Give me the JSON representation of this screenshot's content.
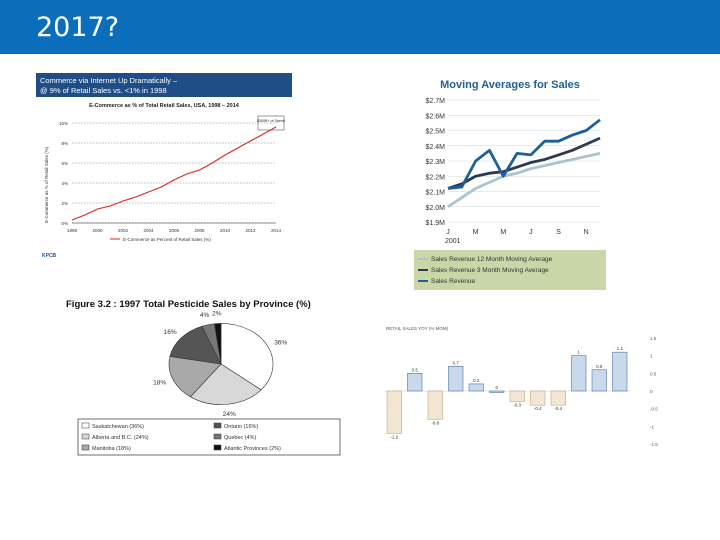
{
  "slide": {
    "title": "2017?"
  },
  "colors": {
    "header": "#0a6ebd",
    "ecom_banner": "#1f4e86",
    "ecom_line": "#d62728",
    "ma_line1": "#a9c4cf",
    "ma_line2": "#2b3a4f",
    "ma_line3": "#1f5f99",
    "ma_legend_bg": "#c8d6a8"
  },
  "ecommerce": {
    "banner_line1": "Commerce via Internet Up Dramatically –",
    "banner_line2": "@ 9% of Retail Sales vs. <1% in 1998",
    "chart_title": "E-Commerce as % of Total Retail Sales, USA, 1998 – 2014",
    "callout": "$300B+ of Spend",
    "ylabel": "E-Commerce as % of Retail Sales (%)",
    "legend": "E-Commerce as Percent of Retail Sales (%)",
    "footer_logo": "KPCB"
  },
  "moving_avg": {
    "title": "Moving Averages for Sales",
    "year_label": "2001",
    "legend": [
      "Sales Revenue 12 Month Moving Average",
      "Sales Revenue 3 Month Moving Average",
      "Sales Revenue"
    ]
  },
  "pesticide": {
    "title": "Figure 3.2 : 1997 Total Pesticide Sales by Province (%)",
    "legend": [
      "Saskatchewan (36%)",
      "Ontario (16%)",
      "Alberta and B.C. (24%)",
      "Quebec (4%)",
      "Manitoba (18%)",
      "Atlantic Provinces (2%)"
    ]
  },
  "bar_panel": {
    "header": "RETAIL SALES YOY (% MOM)"
  },
  "chart_data": [
    {
      "type": "line",
      "title": "E-Commerce as % of Total Retail Sales, USA, 1998 – 2014",
      "xlabel": "",
      "ylabel": "E-Commerce as % of Retail Sales (%)",
      "x": [
        1998,
        1999,
        2000,
        2001,
        2002,
        2003,
        2004,
        2005,
        2006,
        2007,
        2008,
        2009,
        2010,
        2011,
        2012,
        2013,
        2014
      ],
      "series": [
        {
          "name": "E-Commerce as Percent of Retail Sales (%)",
          "values": [
            0.3,
            0.8,
            1.4,
            1.7,
            2.2,
            2.6,
            3.1,
            3.6,
            4.3,
            4.9,
            5.3,
            6.0,
            6.8,
            7.5,
            8.2,
            8.9,
            9.6
          ]
        }
      ],
      "ylim": [
        0,
        10
      ],
      "yticks": [
        "0%",
        "2%",
        "4%",
        "6%",
        "8%",
        "10%"
      ],
      "xticks": [
        "1998",
        "2000",
        "2002",
        "2004",
        "2006",
        "2008",
        "2010",
        "2012",
        "2014"
      ],
      "legend_position": "bottom"
    },
    {
      "type": "line",
      "title": "Moving Averages for Sales",
      "x": [
        "J",
        "F",
        "M",
        "A",
        "M",
        "J",
        "J",
        "A",
        "S",
        "O",
        "N",
        "D"
      ],
      "xticks": [
        "J",
        "M",
        "M",
        "J",
        "S",
        "N"
      ],
      "yticks": [
        "$1.9M",
        "$2.0M",
        "$2.1M",
        "$2.2M",
        "$2.3M",
        "$2.4M",
        "$2.5M",
        "$2.6M",
        "$2.7M"
      ],
      "ylim": [
        1.9,
        2.7
      ],
      "series": [
        {
          "name": "Sales Revenue 12 Month Moving Average",
          "values": [
            2.0,
            2.06,
            2.12,
            2.16,
            2.2,
            2.22,
            2.25,
            2.27,
            2.29,
            2.31,
            2.33,
            2.35
          ]
        },
        {
          "name": "Sales Revenue 3 Month Moving Average",
          "values": [
            2.12,
            2.15,
            2.2,
            2.22,
            2.23,
            2.26,
            2.29,
            2.31,
            2.34,
            2.37,
            2.41,
            2.45
          ]
        },
        {
          "name": "Sales Revenue",
          "values": [
            2.12,
            2.13,
            2.3,
            2.37,
            2.2,
            2.35,
            2.34,
            2.43,
            2.43,
            2.47,
            2.5,
            2.57
          ]
        }
      ],
      "legend_position": "bottom"
    },
    {
      "type": "pie",
      "title": "Figure 3.2 : 1997 Total Pesticide Sales by Province (%)",
      "categories": [
        "Saskatchewan",
        "Alberta and B.C.",
        "Manitoba",
        "Ontario",
        "Quebec",
        "Atlantic Provinces"
      ],
      "values": [
        36,
        24,
        18,
        16,
        4,
        2
      ],
      "labels": [
        "36%",
        "24%",
        "18%",
        "16%",
        "4%",
        "2%"
      ],
      "legend_position": "bottom"
    },
    {
      "type": "bar",
      "title": "",
      "values": [
        -1.2,
        0.5,
        -0.8,
        0.7,
        0.2,
        0.0,
        -0.3,
        -0.4,
        -0.4,
        1.0,
        0.6,
        1.1
      ],
      "data_labels": [
        "-1.2",
        "0.5",
        "-0.8",
        "0.7",
        "0.2",
        "0",
        "-0.3",
        "-0.4",
        "-0.4",
        "1",
        "0.6",
        "1.1"
      ],
      "ylim": [
        -1.5,
        1.5
      ],
      "yticks": [
        "1.5",
        "1",
        "0.5",
        "0",
        "-0.5",
        "-1",
        "-1.5"
      ]
    }
  ]
}
